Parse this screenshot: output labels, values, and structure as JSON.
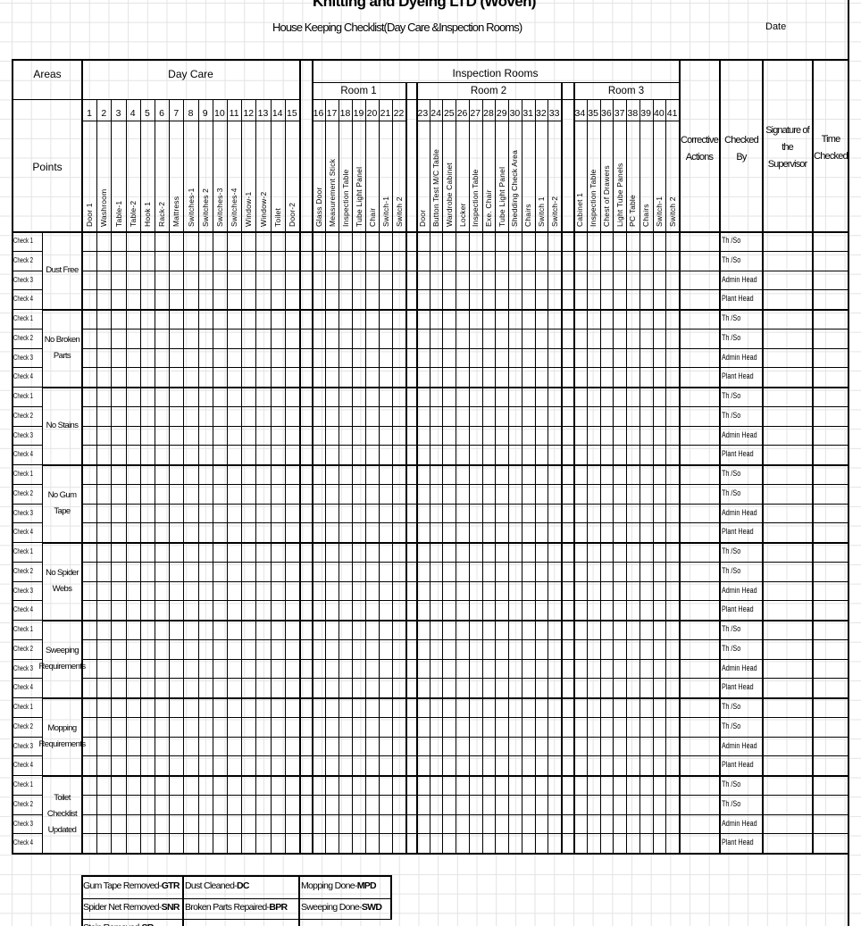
{
  "company_title": "Knitting and Dyeing LTD (Woven)",
  "sheet_title": "House Keeping Checklist(Day Care &Inspection Rooms)",
  "date_label": "Date",
  "areas_label": "Areas",
  "points_label": "Points",
  "day_care_label": "Day Care",
  "inspection_label": "Inspection Rooms",
  "rooms": [
    "Room 1",
    "Room 2",
    "Room 3"
  ],
  "side_headers": {
    "corrective": "Corrective Actions",
    "checked_by": "Checked By",
    "signature": "Signature of the Supervisor",
    "time": "Time Checked"
  },
  "day_care_numbers": [
    "1",
    "2",
    "3",
    "4",
    "5",
    "6",
    "7",
    "8",
    "9",
    "10",
    "11",
    "12",
    "13",
    "14",
    "15"
  ],
  "day_care_items": [
    "Door 1",
    "Washroom",
    "Table-1",
    "Table-2",
    "Hook 1",
    "Rack-2",
    "Mattress",
    "Switches-1",
    "Switches 2",
    "Switches-3",
    "Switches-4",
    "Window-1",
    "Window-2",
    "Toilet",
    "Door-2"
  ],
  "room1_numbers": [
    "16",
    "17",
    "18",
    "19",
    "20",
    "21",
    "22"
  ],
  "room1_items": [
    "Glass Door",
    "Measurement Stick",
    "Inspection Table",
    "Tube Light Panel",
    "Chair",
    "Switch-1",
    "Switch 2"
  ],
  "room2_numbers": [
    "23",
    "24",
    "25",
    "26",
    "27",
    "28",
    "29",
    "30",
    "31",
    "32",
    "33"
  ],
  "room2_items": [
    "Door",
    "Button Test M/C Table",
    "Wardrobe Cabinet",
    "Locker",
    "Inspection Table",
    "Exe. Chair",
    "Tube Light Panel",
    "Shedding Check Area",
    "Chairs",
    "Switch 1",
    "Switch-2"
  ],
  "room3_numbers": [
    "34",
    "35",
    "36",
    "37",
    "38",
    "39",
    "40",
    "41"
  ],
  "room3_items": [
    "Cabinet 1",
    "Inspection Table",
    "Chest of Drawers",
    "Light Tube Panels",
    "PC Table",
    "Chairs",
    "Switch-1",
    "Switch 2"
  ],
  "check_labels": [
    "Check 1",
    "Check 2",
    "Check 3",
    "Check 4"
  ],
  "points": [
    "Dust Free",
    "No Broken Parts",
    "No Stains",
    "No Gum Tape",
    "No Spider Webs",
    "Sweeping Requirements",
    "Mopping Requirements",
    "Toilet Checklist Updated"
  ],
  "checked_by": [
    "Th  /So",
    "Th  /So",
    "Admin Head",
    "Plant Head"
  ],
  "legend": {
    "row1": [
      {
        "text": "Gum Tape Removed-",
        "code": "GTR"
      },
      {
        "text": "Dust Cleaned-",
        "code": "DC"
      },
      {
        "text": "Mopping Done-",
        "code": "MPD"
      }
    ],
    "row2": [
      {
        "text": "Spider Net Removed-",
        "code": "SNR"
      },
      {
        "text": "Broken Parts Repaired-",
        "code": "BPR"
      },
      {
        "text": "Sweeping Done-",
        "code": "SWD"
      }
    ],
    "row3": [
      {
        "text": "Stain Removed-",
        "code": "SR"
      }
    ]
  }
}
